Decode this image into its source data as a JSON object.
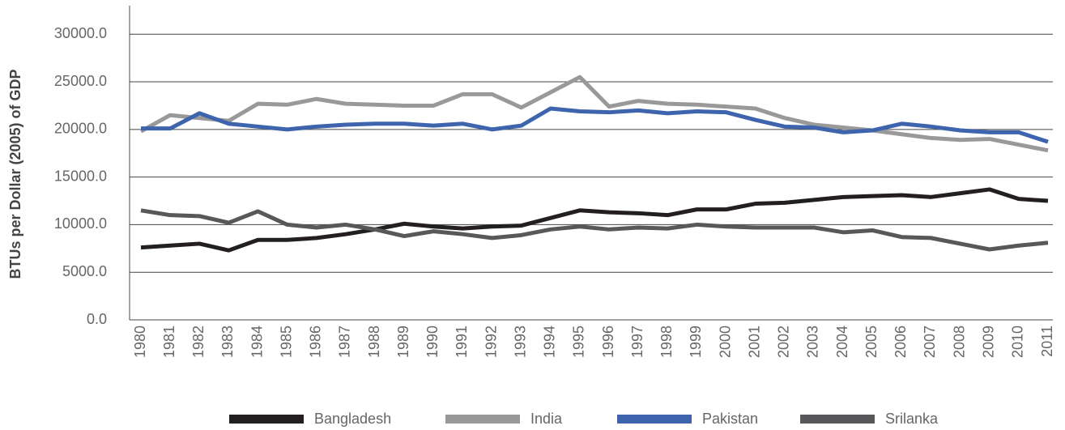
{
  "chart_data": {
    "type": "line",
    "y_label": "BTUs per Dollar (2005) of GDP",
    "categories": [
      "1980",
      "1981",
      "1982",
      "1983",
      "1984",
      "1985",
      "1986",
      "1987",
      "1988",
      "1989",
      "1990",
      "1991",
      "1992",
      "1993",
      "1994",
      "1995",
      "1996",
      "1997",
      "1998",
      "1999",
      "2000",
      "2001",
      "2002",
      "2003",
      "2004",
      "2005",
      "2006",
      "2007",
      "2008",
      "2009",
      "2010",
      "2011"
    ],
    "series": [
      {
        "name": "Bangladesh",
        "color": "#231f20",
        "values": [
          7600,
          7800,
          8000,
          7300,
          8400,
          8400,
          8600,
          9000,
          9500,
          10100,
          9800,
          9600,
          9800,
          9900,
          10700,
          11500,
          11300,
          11200,
          11000,
          11600,
          11600,
          12200,
          12300,
          12600,
          12900,
          13000,
          13100,
          12900,
          13300,
          13700,
          12700,
          12500
        ]
      },
      {
        "name": "India",
        "color": "#999999",
        "values": [
          19800,
          21500,
          21200,
          20900,
          22700,
          22600,
          23200,
          22700,
          22600,
          22500,
          22500,
          23700,
          23700,
          22300,
          23900,
          25500,
          22400,
          23000,
          22700,
          22600,
          22400,
          22200,
          21200,
          20500,
          20200,
          19900,
          19500,
          19100,
          18900,
          19000,
          18400,
          17800
        ]
      },
      {
        "name": "Pakistan",
        "color": "#3d64ad",
        "values": [
          20100,
          20100,
          21700,
          20600,
          20300,
          20000,
          20300,
          20500,
          20600,
          20600,
          20400,
          20600,
          20000,
          20400,
          22200,
          21900,
          21800,
          22000,
          21700,
          21900,
          21800,
          21000,
          20300,
          20200,
          19700,
          19900,
          20600,
          20300,
          19900,
          19700,
          19700,
          18700
        ]
      },
      {
        "name": "Srilanka",
        "color": "#58585a",
        "values": [
          11500,
          11000,
          10900,
          10200,
          11400,
          10000,
          9700,
          10000,
          9500,
          8800,
          9300,
          9000,
          8600,
          8900,
          9500,
          9800,
          9500,
          9700,
          9600,
          10000,
          9800,
          9700,
          9700,
          9700,
          9200,
          9400,
          8700,
          8600,
          8000,
          7400,
          7800,
          8100
        ]
      }
    ],
    "ylim": [
      0,
      33000
    ],
    "yticks": [
      {
        "value": 0,
        "label": "0.0"
      },
      {
        "value": 5000,
        "label": "5000.0"
      },
      {
        "value": 10000,
        "label": "10000.0"
      },
      {
        "value": 15000,
        "label": "15000.0"
      },
      {
        "value": 20000,
        "label": "20000.0"
      },
      {
        "value": 25000,
        "label": "25000.0"
      },
      {
        "value": 30000,
        "label": "30000.0"
      }
    ],
    "grid": true,
    "legend": "bottom"
  }
}
